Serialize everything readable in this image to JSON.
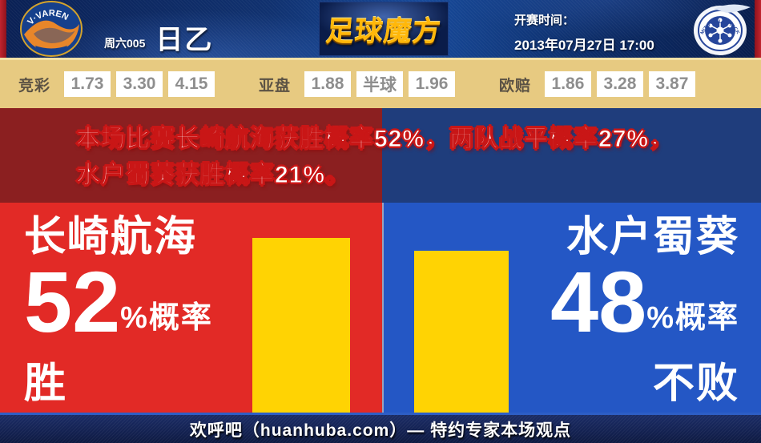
{
  "header": {
    "match_code": "周六005",
    "league": "日乙",
    "brand": "足球魔方",
    "kickoff_label": "开赛时间：",
    "kickoff_time": "2013年07月27日 17:00",
    "home_crest": "v-varen-nagasaki-crest",
    "away_crest": "mito-hollyhock-crest"
  },
  "odds": {
    "jingcai": {
      "label": "竞彩",
      "values": [
        "1.73",
        "3.30",
        "4.15"
      ]
    },
    "yapan": {
      "label": "亚盘",
      "home": "1.88",
      "handicap": "半球",
      "away": "1.96"
    },
    "oupei": {
      "label": "欧赔",
      "values": [
        "1.86",
        "3.28",
        "3.87"
      ]
    }
  },
  "summary": {
    "text": "本场比赛长崎航海获胜概率52%，两队战平概率27%，水户蜀葵获胜概率21%。"
  },
  "home": {
    "name": "长崎航海",
    "probability": "52",
    "unit": "%概率",
    "outcome": "胜"
  },
  "away": {
    "name": "水户蜀葵",
    "probability": "48",
    "unit": "%概率",
    "outcome": "不败"
  },
  "footer": {
    "text": "欢呼吧（huanhuba.com）— 特约专家本场观点"
  },
  "colors": {
    "home_red": "#e22a26",
    "away_blue": "#2457c5",
    "bar_yellow": "#ffd303",
    "band_dark_red": "#8b1f20",
    "band_dark_blue": "#1f3d7c",
    "odds_bg_tan": "#e7ca81",
    "footer_navy": "#15245c",
    "brand_gold": "#ffb70a"
  },
  "chart_data": {
    "type": "bar",
    "categories": [
      "长崎航海",
      "水户蜀葵"
    ],
    "values": [
      52,
      48
    ],
    "outcomes": [
      "胜",
      "不败"
    ],
    "unit": "%",
    "probabilities": {
      "home_win": 52,
      "draw": 27,
      "away_win": 21,
      "away_unbeaten": 48
    },
    "bar_color": "#ffd303",
    "legend_position": "none",
    "grid": false
  }
}
